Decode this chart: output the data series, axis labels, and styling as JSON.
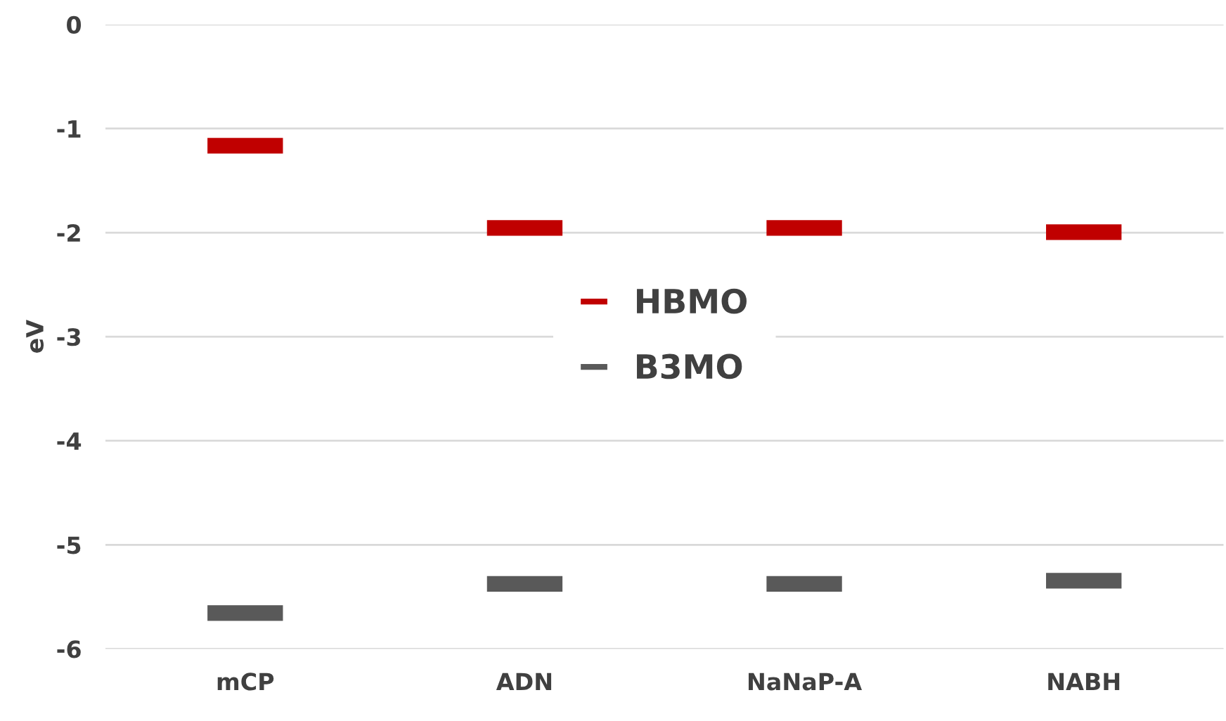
{
  "chart_data": {
    "type": "bar",
    "ylabel": "eV",
    "categories": [
      "mCP",
      "ADN",
      "NaNaP-A",
      "NABH"
    ],
    "series": [
      {
        "name": "HBMO",
        "color": "#c00000",
        "base": [
          -1.24,
          -2.03,
          -2.03,
          -2.07
        ],
        "values": [
          0.15,
          0.15,
          0.15,
          0.15
        ]
      },
      {
        "name": "B3MO",
        "color": "#595959",
        "base": [
          -5.73,
          -5.45,
          -5.45,
          -5.42
        ],
        "values": [
          0.15,
          0.15,
          0.15,
          0.15
        ]
      }
    ],
    "ylim": [
      -6,
      0
    ],
    "yticks": [
      -6,
      -5,
      -4,
      -3,
      -2,
      -1,
      0
    ],
    "grid": "y",
    "legend": "center"
  }
}
